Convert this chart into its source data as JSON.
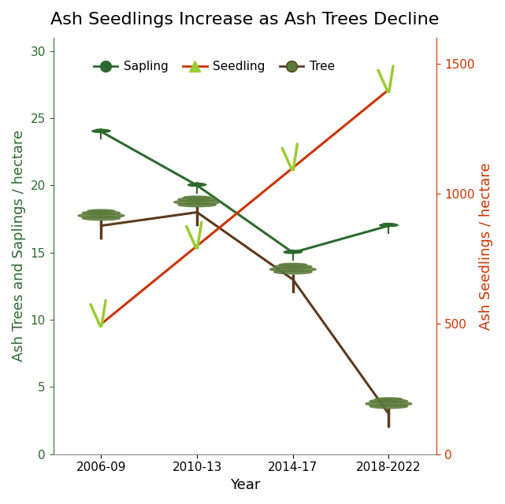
{
  "title": "Ash Seedlings Increase as Ash Trees Decline",
  "xlabel": "Year",
  "ylabel_left": "Ash Trees and Saplings / hectare",
  "ylabel_right": "Ash Seedlings / hectare",
  "x_labels": [
    "2006-09",
    "2010-13",
    "2014-17",
    "2018-2022"
  ],
  "x_values": [
    0,
    1,
    2,
    3
  ],
  "sapling_values": [
    24,
    20,
    15,
    17
  ],
  "tree_values": [
    17,
    18,
    13,
    3
  ],
  "seedling_values": [
    500,
    800,
    1100,
    1400
  ],
  "sapling_color": "#2d6a2d",
  "tree_color": "#5c3a1e",
  "seedling_color": "#cc3300",
  "seedling_marker_color": "#99cc33",
  "left_ylim": [
    0,
    31
  ],
  "right_ylim": [
    0,
    1600
  ],
  "left_yticks": [
    0,
    5,
    10,
    15,
    20,
    25,
    30
  ],
  "right_yticks": [
    0,
    500,
    1000,
    1500
  ],
  "bg_color": "#ffffff",
  "title_fontsize": 16,
  "axis_label_fontsize": 13,
  "tick_fontsize": 11,
  "legend_fontsize": 11
}
